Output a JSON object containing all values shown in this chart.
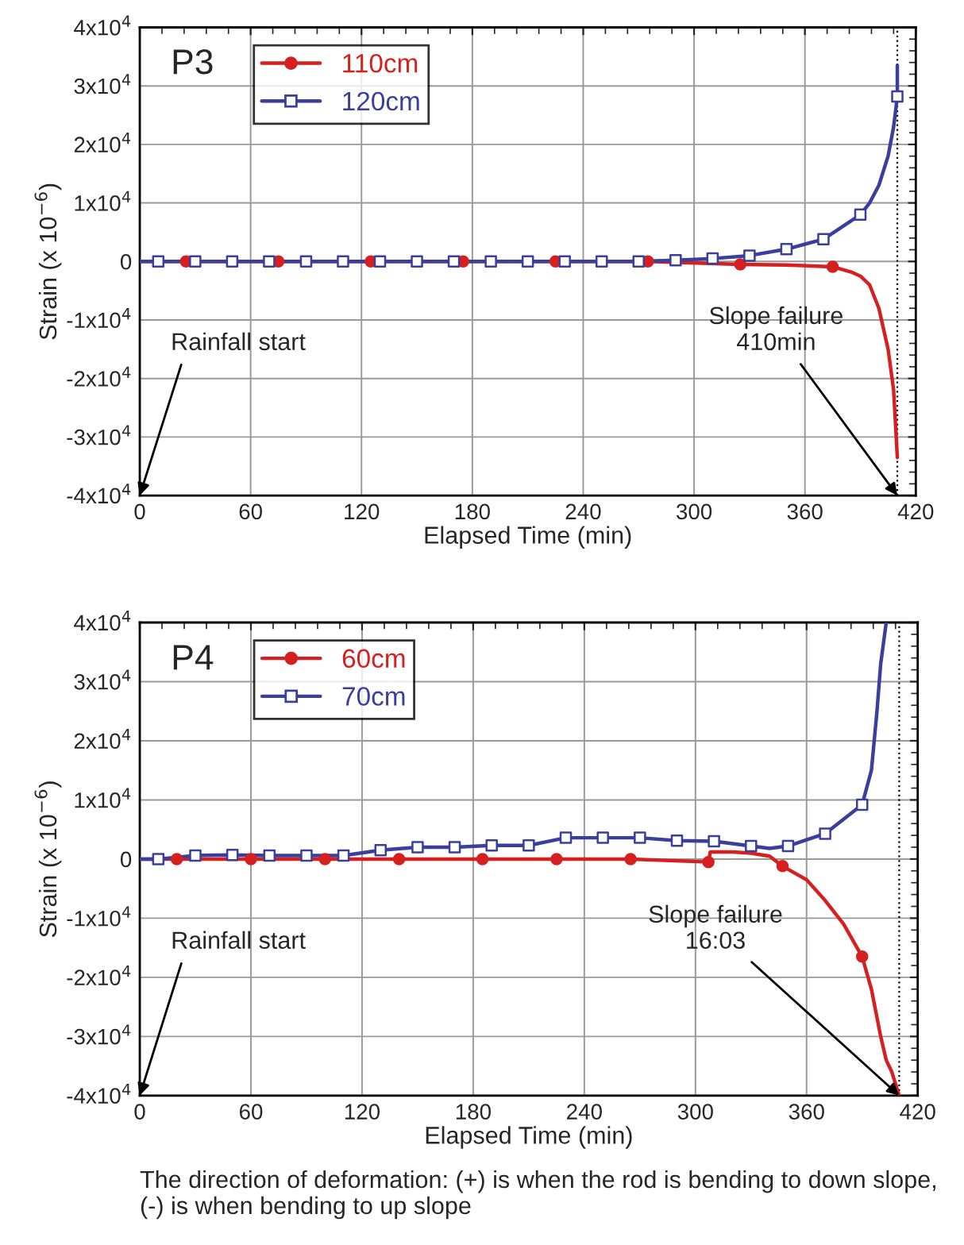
{
  "chart_data": [
    {
      "type": "line",
      "xlabel": "Elapsed Time (min)",
      "ylabel": "Strain (x 10$^{−6}$)",
      "xlim": [
        0,
        420
      ],
      "xticks": [
        0,
        60,
        120,
        180,
        240,
        300,
        360,
        420
      ],
      "ylim": [
        -40000,
        40000
      ],
      "yticks": [
        {
          "value": -40000,
          "label": "-4x10$^{4}$"
        },
        {
          "value": -30000,
          "label": "-3x10$^{4}$"
        },
        {
          "value": -20000,
          "label": "-2x10$^{4}$"
        },
        {
          "value": -10000,
          "label": "-1x10$^{4}$"
        },
        {
          "value": 0,
          "label": "0"
        },
        {
          "value": 10000,
          "label": "1x10$^{4}$"
        },
        {
          "value": 20000,
          "label": "2x10$^{4}$"
        },
        {
          "value": 30000,
          "label": "3x10$^{4}$"
        },
        {
          "value": 40000,
          "label": "4x10$^{4}$"
        }
      ],
      "grid": true,
      "legend": "top left",
      "series": [
        {
          "color": "#d62020",
          "x": [
            0,
            25,
            75,
            125,
            175,
            225,
            275,
            325,
            350,
            375,
            385,
            390,
            395,
            400,
            405,
            408,
            410
          ],
          "values": [
            0,
            0,
            0,
            0,
            0,
            0,
            0,
            -500,
            -600,
            -900,
            -1800,
            -2500,
            -4000,
            -8000,
            -15000,
            -22000,
            -33500
          ]
        },
        {
          "type": "scatter",
          "name": "110cm",
          "color": "#d62020",
          "marker": "circle",
          "x": [
            25,
            75,
            125,
            175,
            225,
            275,
            325,
            375
          ],
          "values": [
            0,
            0,
            0,
            0,
            0,
            0,
            -500,
            -900
          ]
        },
        {
          "color": "#3a3f9e",
          "x": [
            0,
            10,
            30,
            50,
            70,
            90,
            110,
            130,
            150,
            170,
            190,
            210,
            230,
            250,
            270,
            290,
            310,
            330,
            350,
            370,
            390,
            395,
            400,
            405,
            408,
            410,
            410
          ],
          "values": [
            0,
            0,
            0,
            0,
            0,
            0,
            0,
            0,
            0,
            0,
            0,
            0,
            0,
            0,
            0,
            200,
            500,
            1000,
            2100,
            3800,
            8000,
            10000,
            13000,
            18000,
            23000,
            28200,
            33500
          ]
        },
        {
          "type": "scatter",
          "name": "120cm",
          "color": "#3a3f9e",
          "marker": "square",
          "x": [
            10,
            30,
            50,
            70,
            90,
            110,
            130,
            150,
            170,
            190,
            210,
            230,
            250,
            270,
            290,
            310,
            330,
            350,
            370,
            390,
            410
          ],
          "values": [
            0,
            0,
            0,
            0,
            0,
            0,
            0,
            0,
            0,
            0,
            0,
            0,
            0,
            0,
            200,
            500,
            1000,
            2100,
            3800,
            8000,
            28200
          ]
        }
      ],
      "ref_lines": [
        {
          "axis": "x",
          "value": 410,
          "color": "#000000",
          "line_style": "dotted"
        }
      ],
      "annotations": [
        "P3",
        "Rainfall start",
        {
          "text": "Slope failure\n410min",
          "x": 410,
          "y": -40000
        }
      ]
    },
    {
      "type": "line",
      "xlabel": "Elapsed Time (min)",
      "ylabel": "Strain (x 10$^{−6}$)",
      "xlim": [
        0,
        420
      ],
      "xticks": [
        0,
        60,
        120,
        180,
        240,
        300,
        360,
        420
      ],
      "ylim": [
        -40000,
        40000
      ],
      "yticks": [
        {
          "value": -40000,
          "label": "-4x10$^{4}$"
        },
        {
          "value": -30000,
          "label": "-3x10$^{4}$"
        },
        {
          "value": -20000,
          "label": "-2x10$^{4}$"
        },
        {
          "value": -10000,
          "label": "-1x10$^{4}$"
        },
        {
          "value": 0,
          "label": "0"
        },
        {
          "value": 10000,
          "label": "1x10$^{4}$"
        },
        {
          "value": 20000,
          "label": "2x10$^{4}$"
        },
        {
          "value": 30000,
          "label": "3x10$^{4}$"
        },
        {
          "value": 40000,
          "label": "4x10$^{4}$"
        }
      ],
      "grid": true,
      "legend": "top left",
      "series": [
        {
          "color": "#d62020",
          "x": [
            0,
            20,
            60,
            100,
            140,
            185,
            225,
            265,
            307,
            308,
            320,
            330,
            340,
            347,
            360,
            370,
            380,
            390,
            395,
            400,
            403,
            406,
            410
          ],
          "values": [
            0,
            0,
            0,
            0,
            0,
            0,
            0,
            0,
            -500,
            1200,
            1200,
            1000,
            500,
            -1200,
            -3500,
            -7000,
            -11000,
            -16500,
            -22000,
            -30000,
            -34000,
            -36000,
            -40000
          ]
        },
        {
          "type": "scatter",
          "name": "60cm",
          "color": "#d62020",
          "marker": "circle",
          "x": [
            20,
            60,
            100,
            140,
            185,
            225,
            265,
            307,
            347,
            390
          ],
          "values": [
            0,
            0,
            0,
            0,
            0,
            0,
            0,
            -500,
            -1200,
            -16500
          ]
        },
        {
          "color": "#3a3f9e",
          "x": [
            0,
            10,
            30,
            50,
            70,
            90,
            110,
            130,
            150,
            170,
            190,
            210,
            230,
            250,
            270,
            290,
            310,
            330,
            340,
            350,
            370,
            390,
            395,
            398,
            400,
            403
          ],
          "values": [
            0,
            0,
            600,
            700,
            600,
            600,
            600,
            1500,
            2000,
            2000,
            2300,
            2300,
            3600,
            3600,
            3600,
            3100,
            3000,
            2200,
            1800,
            2200,
            4300,
            9200,
            15000,
            25000,
            33000,
            40000
          ]
        },
        {
          "type": "scatter",
          "name": "70cm",
          "color": "#3a3f9e",
          "marker": "square",
          "x": [
            10,
            30,
            50,
            70,
            90,
            110,
            130,
            150,
            170,
            190,
            210,
            230,
            250,
            270,
            290,
            310,
            330,
            350,
            370,
            390
          ],
          "values": [
            0,
            600,
            700,
            600,
            600,
            600,
            1500,
            2000,
            2000,
            2300,
            2300,
            3600,
            3600,
            3600,
            3100,
            3000,
            2200,
            2200,
            4300,
            9200
          ]
        }
      ],
      "ref_lines": [
        {
          "axis": "x",
          "value": 410,
          "color": "#000000",
          "line_style": "dotted"
        }
      ],
      "annotations": [
        "P4",
        "Rainfall start",
        {
          "text": "Slope failure\n16:03",
          "x": 410,
          "y": -40000
        },
        "The direction of deformation: (+) is when the rod is bending to down slope, (-) is when bending to up slope"
      ]
    }
  ]
}
